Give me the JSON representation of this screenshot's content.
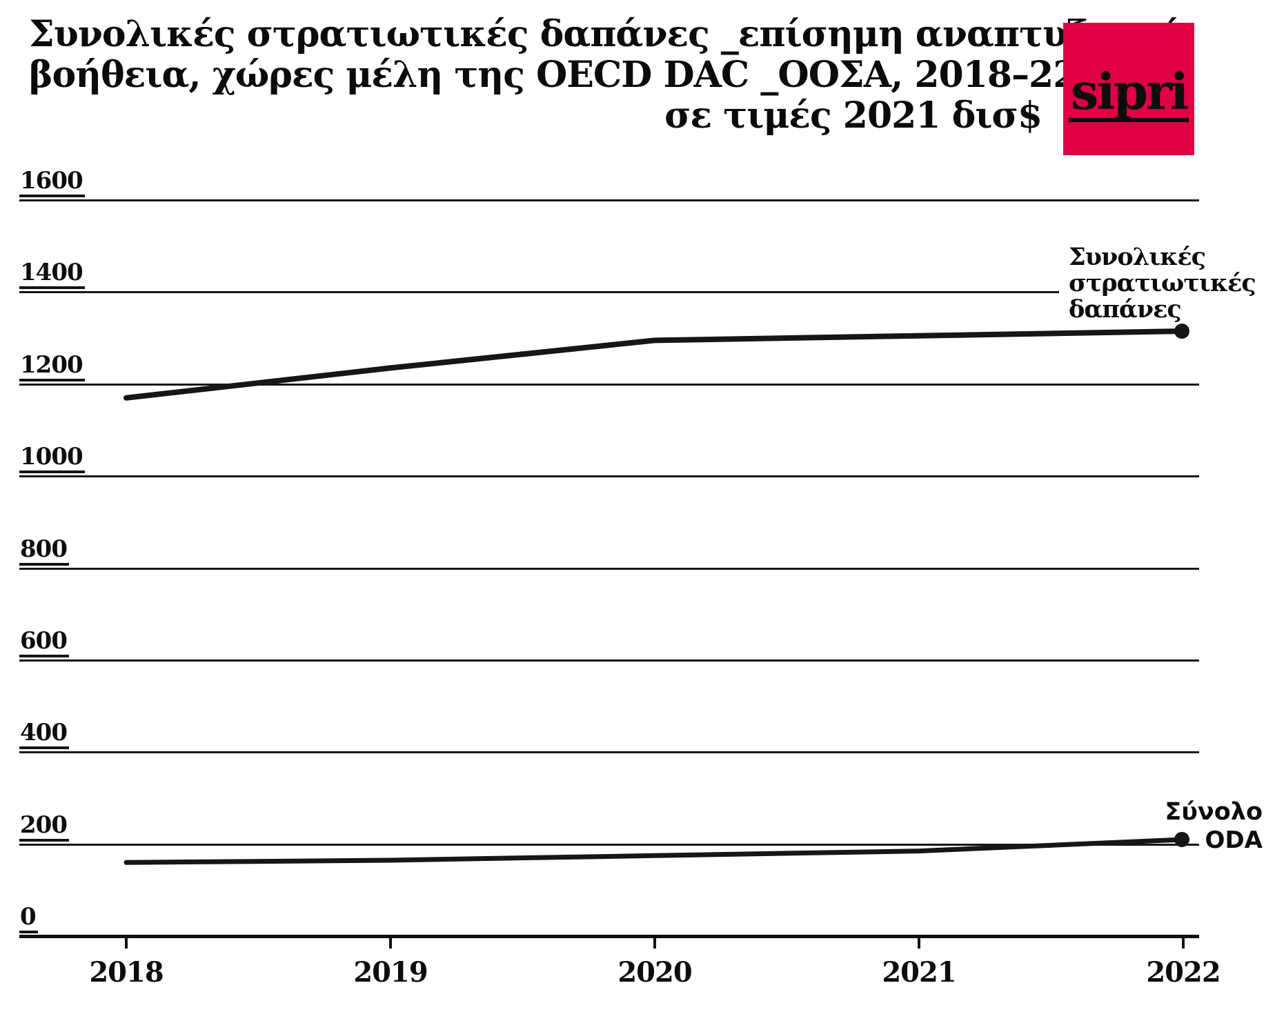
{
  "title": {
    "line1": "Συνολικές στρατιωτικές δαπάνες _επίσημη αναπτυξιακή",
    "line2": "βοήθεια, χώρες μέλη της OECD DAC _ΟΟΣΑ, 2018–22",
    "line3": "σε τιμές 2021 δισ$"
  },
  "logo": {
    "text": "sipri"
  },
  "annotations": {
    "military": "Συνολικές\nστρατιωτικές\nδαπάνες",
    "oda_line1": "Σύνολο",
    "oda_line2": "ODA"
  },
  "chart_data": {
    "type": "line",
    "title": "Συνολικές στρατιωτικές δαπάνες _επίσημη αναπτυξιακή βοήθεια, χώρες μέλη της OECD DAC _ΟΟΣΑ, 2018–22, σε τιμές 2021 δισ$",
    "x": [
      "2018",
      "2019",
      "2020",
      "2021",
      "2022"
    ],
    "series": [
      {
        "name": "Συνολικές στρατιωτικές δαπάνες",
        "values": [
          1170,
          1235,
          1295,
          1305,
          1315
        ]
      },
      {
        "name": "Σύνολο ODA",
        "values": [
          160,
          165,
          175,
          185,
          210
        ]
      }
    ],
    "ylim": [
      0,
      1600
    ],
    "yticks": [
      0,
      200,
      400,
      600,
      800,
      1000,
      1200,
      1400,
      1600
    ],
    "ytick_labels": [
      "0",
      "200",
      "400",
      "600",
      "800",
      "1000",
      "1200",
      "1400",
      "1600"
    ],
    "grid": true,
    "legend_position": "end-of-line annotations",
    "line_color": "#161616"
  },
  "colors": {
    "background": "#ffffff",
    "line": "#161616",
    "logo_red": "#e00043",
    "text": "#0d0d0d"
  }
}
